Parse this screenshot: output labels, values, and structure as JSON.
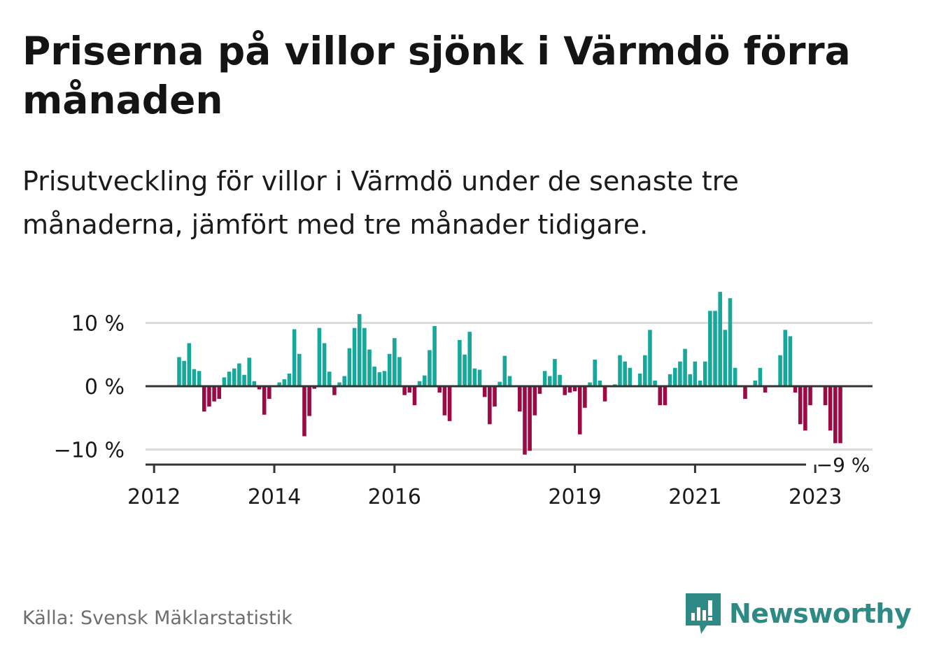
{
  "title": "Priserna på villor sjönk i Värmdö förra månaden",
  "subtitle": "Prisutveckling för villor i Värmdö under de senaste tre månaderna, jämfört med tre månader tidigare.",
  "source": "Källa: Svensk Mäklarstatistik",
  "brand": {
    "name": "Newsworthy",
    "icon": "bar-chart-logo-icon",
    "color": "#2e8a84"
  },
  "colors": {
    "positive": "#16a89a",
    "negative": "#9b0a45",
    "axis": "#333333",
    "grid": "#dcdcdc",
    "text": "#1a1a1a"
  },
  "chart_data": {
    "type": "bar",
    "title": "",
    "xlabel": "",
    "ylabel": "",
    "ylim": [
      -12.3,
      16
    ],
    "y_ticks": [
      {
        "value": 10,
        "label": "10 %"
      },
      {
        "value": 0,
        "label": "0 %"
      },
      {
        "value": -10,
        "label": "−10 %"
      }
    ],
    "x_ticks": [
      {
        "value": 2012,
        "label": "2012"
      },
      {
        "value": 2014,
        "label": "2014"
      },
      {
        "value": 2016,
        "label": "2016"
      },
      {
        "value": 2019,
        "label": "2019"
      },
      {
        "value": 2021,
        "label": "2021"
      },
      {
        "value": 2023,
        "label": "2023"
      }
    ],
    "start": "2012-06",
    "frequency": "monthly",
    "values": [
      4.6,
      4.0,
      6.8,
      2.7,
      2.4,
      -4.0,
      -3.2,
      -2.4,
      -2.0,
      1.4,
      2.3,
      2.8,
      3.6,
      1.8,
      4.5,
      0.8,
      -0.5,
      -4.5,
      -2.0,
      0,
      0.6,
      1.1,
      2.0,
      9.0,
      5.1,
      -7.9,
      -4.7,
      -0.4,
      9.2,
      6.8,
      2.3,
      -1.4,
      0.6,
      1.6,
      6.0,
      9.2,
      11.4,
      9.2,
      5.8,
      3.1,
      2.2,
      2.4,
      5.1,
      7.6,
      4.6,
      -1.4,
      -1.0,
      -3.0,
      0.8,
      1.7,
      5.7,
      9.5,
      -1.0,
      -4.6,
      -5.5,
      0,
      7.3,
      5.0,
      8.6,
      2.8,
      2.6,
      -1.7,
      -6.0,
      -3.2,
      0.7,
      4.8,
      1.6,
      0,
      -4.0,
      -10.8,
      -10.2,
      -4.6,
      -1.2,
      2.4,
      1.6,
      4.3,
      1.8,
      -1.4,
      -1.0,
      -0.8,
      -7.6,
      -3.4,
      0.6,
      4.2,
      0.9,
      -2.4,
      0,
      0.3,
      4.9,
      3.9,
      2.9,
      0,
      2.0,
      4.9,
      8.9,
      0.9,
      -3.0,
      -3.0,
      1.9,
      2.9,
      3.9,
      5.9,
      1.9,
      3.9,
      0.9,
      3.9,
      11.9,
      11.9,
      14.9,
      8.9,
      13.9,
      2.9,
      0,
      -2.0,
      0,
      0.9,
      2.9,
      -1.0,
      0,
      0,
      4.9,
      8.9,
      7.9,
      -1.0,
      -6.0,
      -7.0,
      -3.0,
      0,
      0,
      -3.0,
      -7.0,
      -9.0,
      -9.0
    ],
    "last_value_label": "−9 %"
  }
}
